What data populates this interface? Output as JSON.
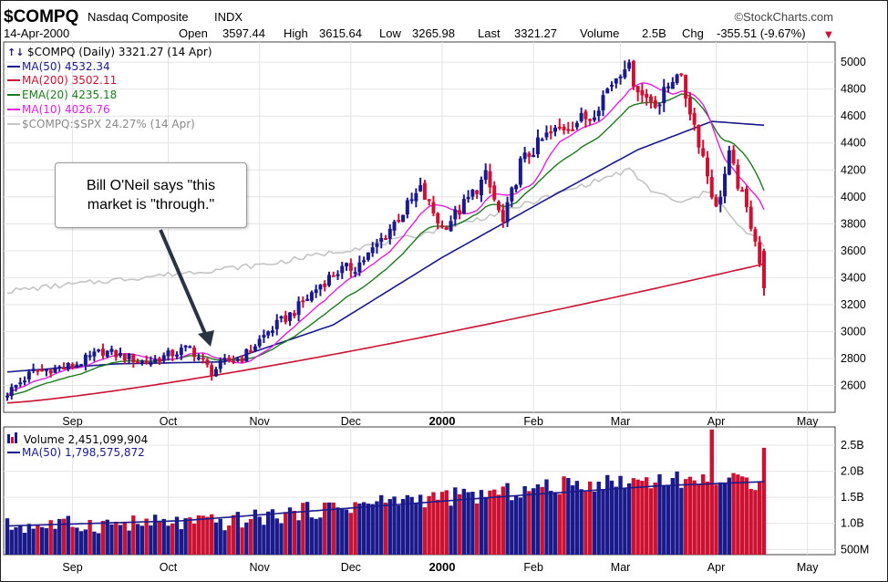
{
  "header": {
    "symbol": "$COMPQ",
    "name": "Nasdaq Composite",
    "exchange": "INDX",
    "date": "14-Apr-2000",
    "brand": "©StockCharts.com",
    "stats": [
      {
        "label": "Open",
        "value": "3597.44"
      },
      {
        "label": "High",
        "value": "3615.64"
      },
      {
        "label": "Low",
        "value": "3265.98"
      },
      {
        "label": "Last",
        "value": "3321.27"
      },
      {
        "label": "Volume",
        "value": "2.5B"
      },
      {
        "label": "Chg",
        "value": "-355.51 (-9.67%)"
      }
    ],
    "chg_marker": "▼"
  },
  "annotation": {
    "text": "Bill O'Neil says \"this\nmarket is \"through.\""
  },
  "colors": {
    "ma50": "#1a1a8c",
    "ma200": "#cc1133",
    "ema20": "#1d7a1d",
    "ma10": "#e020e0",
    "relative": "#c4c4c4",
    "up": "#1a1a8c",
    "down": "#cc1133",
    "grid": "#e4e4e4",
    "arrow": "#2a3344"
  },
  "chart_data": [
    {
      "type": "candlestick",
      "title": "$COMPQ (Daily) 3321.27 (14 Apr)",
      "legend": [
        {
          "key": "price",
          "label": "$COMPQ (Daily) 3321.27 (14 Apr)"
        },
        {
          "key": "ma50",
          "label": "MA(50) 4532.34"
        },
        {
          "key": "ma200",
          "label": "MA(200) 3502.11"
        },
        {
          "key": "ema20",
          "label": "EMA(20) 4235.18"
        },
        {
          "key": "ma10",
          "label": "MA(10) 4026.76"
        },
        {
          "key": "relative",
          "label": "$COMPQ:$SPX 24.27% (14 Apr)"
        }
      ],
      "ylim": [
        2400,
        5150
      ],
      "yticks": [
        2600,
        2800,
        3000,
        3200,
        3400,
        3600,
        3800,
        4000,
        4200,
        4400,
        4600,
        4800,
        5000
      ],
      "x_months": [
        {
          "label": "Sep",
          "bold": false
        },
        {
          "label": "Oct",
          "bold": false
        },
        {
          "label": "Nov",
          "bold": false
        },
        {
          "label": "Dec",
          "bold": false
        },
        {
          "label": "2000",
          "bold": true
        },
        {
          "label": "Feb",
          "bold": false
        },
        {
          "label": "Mar",
          "bold": false
        },
        {
          "label": "Apr",
          "bold": false
        },
        {
          "label": "May",
          "bold": false
        }
      ],
      "close_anchors": [
        [
          0,
          2545
        ],
        [
          6,
          2705
        ],
        [
          15,
          2745
        ],
        [
          22,
          2855
        ],
        [
          32,
          2770
        ],
        [
          42,
          2880
        ],
        [
          47,
          2700
        ],
        [
          50,
          2775
        ],
        [
          54,
          2805
        ],
        [
          60,
          3000
        ],
        [
          66,
          3150
        ],
        [
          72,
          3350
        ],
        [
          76,
          3450
        ],
        [
          80,
          3480
        ],
        [
          84,
          3600
        ],
        [
          90,
          3850
        ],
        [
          95,
          4050
        ],
        [
          100,
          3770
        ],
        [
          104,
          3900
        ],
        [
          110,
          4150
        ],
        [
          114,
          3800
        ],
        [
          118,
          4250
        ],
        [
          124,
          4450
        ],
        [
          130,
          4550
        ],
        [
          134,
          4600
        ],
        [
          138,
          4800
        ],
        [
          142,
          5000
        ],
        [
          146,
          4750
        ],
        [
          150,
          4700
        ],
        [
          154,
          4950
        ],
        [
          157,
          4650
        ],
        [
          160,
          4300
        ],
        [
          163,
          3900
        ],
        [
          166,
          4300
        ],
        [
          169,
          4000
        ],
        [
          172,
          3700
        ],
        [
          174,
          3320
        ]
      ],
      "ma200_range": [
        2470,
        3502
      ],
      "ma50_anchors": [
        [
          0,
          2700
        ],
        [
          25,
          2760
        ],
        [
          50,
          2775
        ],
        [
          75,
          3050
        ],
        [
          100,
          3550
        ],
        [
          125,
          4000
        ],
        [
          145,
          4350
        ],
        [
          162,
          4560
        ],
        [
          174,
          4532
        ]
      ],
      "relative_anchors": [
        [
          0,
          3300
        ],
        [
          30,
          3400
        ],
        [
          60,
          3500
        ],
        [
          90,
          3680
        ],
        [
          110,
          3850
        ],
        [
          130,
          4060
        ],
        [
          143,
          4200
        ],
        [
          148,
          4050
        ],
        [
          155,
          3950
        ],
        [
          162,
          4050
        ],
        [
          168,
          3780
        ],
        [
          174,
          3650
        ]
      ]
    },
    {
      "type": "bar",
      "title": "Volume 2,451,099,904",
      "legend": [
        {
          "key": "volume",
          "label": "Volume 2,451,099,904"
        },
        {
          "key": "ma50",
          "label": "MA(50) 1,798,575,872"
        }
      ],
      "ylim": [
        0.4,
        2.85
      ],
      "yticks": [
        {
          "value": 0.5,
          "label": "500M"
        },
        {
          "value": 1.0,
          "label": "1.0B"
        },
        {
          "value": 1.5,
          "label": "1.5B"
        },
        {
          "value": 2.0,
          "label": "2.0B"
        },
        {
          "value": 2.5,
          "label": "2.5B"
        }
      ],
      "volume_anchors_B": [
        [
          0,
          0.95
        ],
        [
          30,
          1.0
        ],
        [
          50,
          1.02
        ],
        [
          70,
          1.25
        ],
        [
          90,
          1.45
        ],
        [
          110,
          1.55
        ],
        [
          130,
          1.75
        ],
        [
          150,
          1.85
        ],
        [
          165,
          1.8
        ],
        [
          174,
          1.8
        ]
      ],
      "spike_bars_B": [
        [
          162,
          2.8
        ],
        [
          174,
          2.45
        ]
      ],
      "ma50_anchors_B": [
        [
          0,
          0.95
        ],
        [
          40,
          1.05
        ],
        [
          80,
          1.3
        ],
        [
          120,
          1.55
        ],
        [
          150,
          1.72
        ],
        [
          174,
          1.8
        ]
      ]
    }
  ]
}
